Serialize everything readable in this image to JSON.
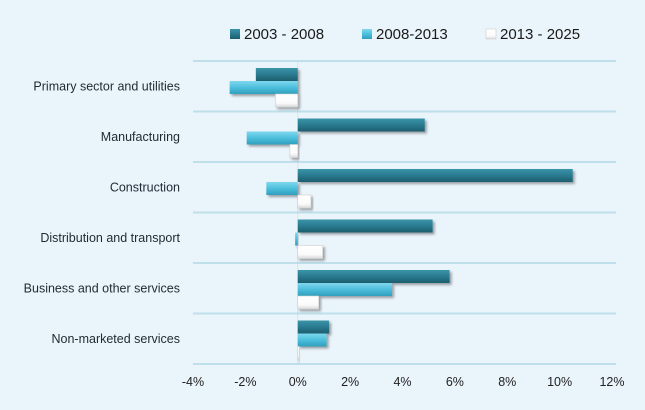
{
  "chart_data": {
    "type": "bar",
    "orientation": "horizontal",
    "title": "",
    "xlabel": "",
    "ylabel": "",
    "xlim": [
      -4,
      12
    ],
    "x_ticks": [
      -4,
      -2,
      0,
      2,
      4,
      6,
      8,
      10,
      12
    ],
    "x_tick_labels": [
      "-4%",
      "-2%",
      "0%",
      "2%",
      "4%",
      "6%",
      "8%",
      "10%",
      "12%"
    ],
    "grid": "horizontal category separators",
    "legend_position": "top",
    "categories": [
      "Primary sector and utilities",
      "Manufacturing",
      "Construction",
      "Distribution and transport",
      "Business and other services",
      "Non-marketed services"
    ],
    "series": [
      {
        "name": "2003 - 2008",
        "color": "#2a7a8f",
        "values": [
          -1.6,
          4.85,
          10.5,
          5.15,
          5.8,
          1.2
        ]
      },
      {
        "name": "2008-2013",
        "color": "#4dbfdc",
        "values": [
          -2.6,
          -1.95,
          -1.2,
          -0.1,
          3.6,
          1.1
        ]
      },
      {
        "name": "2013 - 2025",
        "color": "#ffffff",
        "values": [
          -0.85,
          -0.3,
          0.5,
          0.95,
          0.8,
          0.05
        ]
      }
    ]
  }
}
